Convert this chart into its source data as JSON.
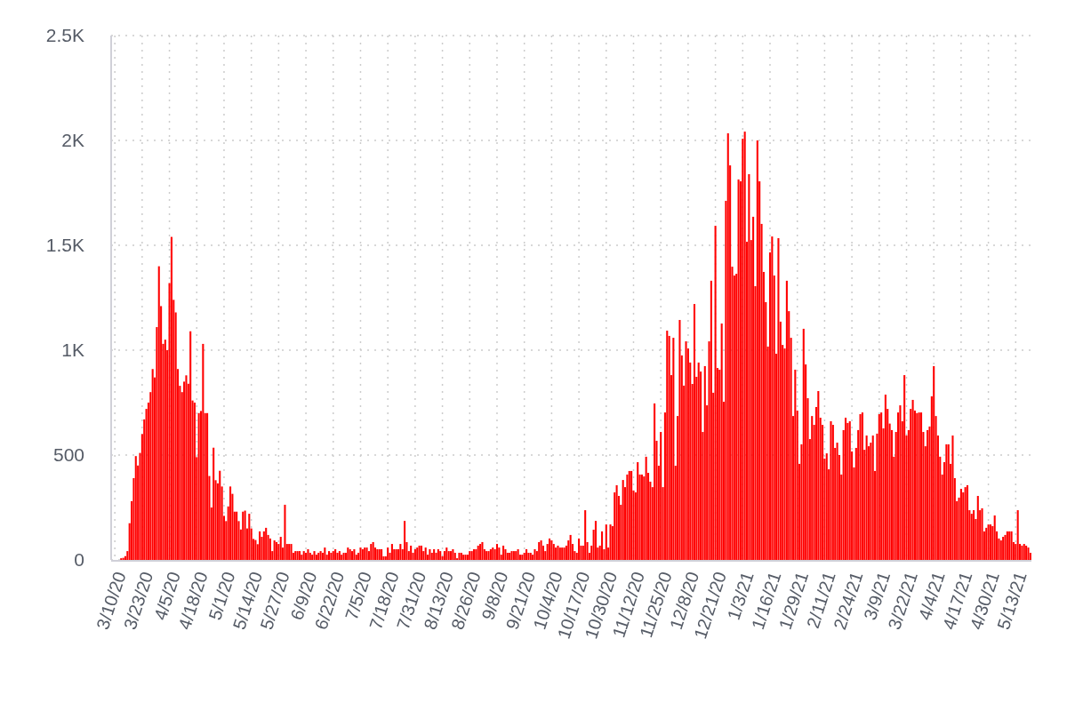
{
  "chart_data": {
    "type": "bar",
    "color": "#ff0000",
    "ylim": [
      0,
      2500
    ],
    "yticks": [
      0,
      500,
      {
        "value": 1000,
        "label": "1K"
      },
      {
        "value": 1500,
        "label": "1.5K"
      },
      {
        "value": 2000,
        "label": "2K"
      },
      {
        "value": 2500,
        "label": "2.5K"
      }
    ],
    "grid": true,
    "categories": [
      "3/10/20",
      null,
      null,
      null,
      null,
      null,
      null,
      null,
      null,
      null,
      null,
      null,
      null,
      "3/23/20",
      null,
      null,
      null,
      null,
      null,
      null,
      null,
      null,
      null,
      null,
      null,
      null,
      "4/5/20",
      null,
      null,
      null,
      null,
      null,
      null,
      null,
      null,
      null,
      null,
      null,
      null,
      "4/18/20",
      null,
      null,
      null,
      null,
      null,
      null,
      null,
      null,
      null,
      null,
      null,
      null,
      "5/1/20",
      null,
      null,
      null,
      null,
      null,
      null,
      null,
      null,
      null,
      null,
      null,
      null,
      "5/14/20",
      null,
      null,
      null,
      null,
      null,
      null,
      null,
      null,
      null,
      null,
      null,
      null,
      "5/27/20",
      null,
      null,
      null,
      null,
      null,
      null,
      null,
      null,
      null,
      null,
      null,
      null,
      "6/9/20",
      null,
      null,
      null,
      null,
      null,
      null,
      null,
      null,
      null,
      null,
      null,
      null,
      "6/22/20",
      null,
      null,
      null,
      null,
      null,
      null,
      null,
      null,
      null,
      null,
      null,
      null,
      "7/5/20",
      null,
      null,
      null,
      null,
      null,
      null,
      null,
      null,
      null,
      null,
      null,
      null,
      "7/18/20",
      null,
      null,
      null,
      null,
      null,
      null,
      null,
      null,
      null,
      null,
      null,
      null,
      "7/31/20",
      null,
      null,
      null,
      null,
      null,
      null,
      null,
      null,
      null,
      null,
      null,
      null,
      "8/13/20",
      null,
      null,
      null,
      null,
      null,
      null,
      null,
      null,
      null,
      null,
      null,
      null,
      "8/26/20",
      null,
      null,
      null,
      null,
      null,
      null,
      null,
      null,
      null,
      null,
      null,
      null,
      "9/8/20",
      null,
      null,
      null,
      null,
      null,
      null,
      null,
      null,
      null,
      null,
      null,
      null,
      "9/21/20",
      null,
      null,
      null,
      null,
      null,
      null,
      null,
      null,
      null,
      null,
      null,
      null,
      "10/4/20",
      null,
      null,
      null,
      null,
      null,
      null,
      null,
      null,
      null,
      null,
      null,
      null,
      "10/17/20",
      null,
      null,
      null,
      null,
      null,
      null,
      null,
      null,
      null,
      null,
      null,
      null,
      "10/30/20",
      null,
      null,
      null,
      null,
      null,
      null,
      null,
      null,
      null,
      null,
      null,
      null,
      "11/12/20",
      null,
      null,
      null,
      null,
      null,
      null,
      null,
      null,
      null,
      null,
      null,
      null,
      "11/25/20",
      null,
      null,
      null,
      null,
      null,
      null,
      null,
      null,
      null,
      null,
      null,
      null,
      "12/8/20",
      null,
      null,
      null,
      null,
      null,
      null,
      null,
      null,
      null,
      null,
      null,
      null,
      "12/21/20",
      null,
      null,
      null,
      null,
      null,
      null,
      null,
      null,
      null,
      null,
      null,
      null,
      "1/3/21",
      null,
      null,
      null,
      null,
      null,
      null,
      null,
      null,
      null,
      null,
      null,
      null,
      "1/16/21",
      null,
      null,
      null,
      null,
      null,
      null,
      null,
      null,
      null,
      null,
      null,
      null,
      "1/29/21",
      null,
      null,
      null,
      null,
      null,
      null,
      null,
      null,
      null,
      null,
      null,
      null,
      "2/11/21",
      null,
      null,
      null,
      null,
      null,
      null,
      null,
      null,
      null,
      null,
      null,
      null,
      "2/24/21",
      null,
      null,
      null,
      null,
      null,
      null,
      null,
      null,
      null,
      null,
      null,
      null,
      "3/9/21",
      null,
      null,
      null,
      null,
      null,
      null,
      null,
      null,
      null,
      null,
      null,
      null,
      "3/22/21",
      null,
      null,
      null,
      null,
      null,
      null,
      null,
      null,
      null,
      null,
      null,
      null,
      "4/4/21",
      null,
      null,
      null,
      null,
      null,
      null,
      null,
      null,
      null,
      null,
      null,
      null,
      "4/17/21",
      null,
      null,
      null,
      null,
      null,
      null,
      null,
      null,
      null,
      null,
      null,
      null,
      "4/30/21",
      null,
      null,
      null,
      null,
      null,
      null,
      null,
      null,
      null,
      null,
      null,
      null,
      "5/13/21",
      null,
      null,
      null,
      null,
      null,
      null,
      null
    ],
    "values": [
      0,
      0,
      0,
      8,
      10,
      18,
      42,
      175,
      280,
      390,
      495,
      450,
      510,
      600,
      670,
      720,
      750,
      800,
      910,
      870,
      1110,
      1400,
      1210,
      1030,
      1050,
      1000,
      1320,
      1540,
      1240,
      1180,
      910,
      830,
      800,
      850,
      880,
      840,
      1090,
      760,
      750,
      490,
      700,
      710,
      1030,
      700,
      700,
      400,
      250,
      535,
      380,
      365,
      425,
      350,
      210,
      185,
      255,
      350,
      315,
      230,
      230,
      185,
      145,
      230,
      235,
      150,
      220,
      150,
      100,
      95,
      75,
      136,
      110,
      136,
      153,
      119,
      102,
      42,
      93,
      85,
      76,
      110,
      59,
      263,
      76,
      76,
      76,
      34,
      42,
      42,
      42,
      25,
      42,
      34,
      51,
      34,
      25,
      42,
      25,
      34,
      42,
      34,
      59,
      25,
      42,
      34,
      42,
      51,
      34,
      42,
      25,
      34,
      34,
      59,
      51,
      42,
      51,
      25,
      34,
      59,
      51,
      59,
      59,
      42,
      76,
      85,
      59,
      51,
      51,
      51,
      17,
      17,
      59,
      34,
      76,
      51,
      51,
      51,
      76,
      51,
      186,
      85,
      42,
      68,
      34,
      51,
      59,
      68,
      68,
      42,
      59,
      25,
      51,
      34,
      51,
      34,
      51,
      42,
      17,
      42,
      59,
      42,
      42,
      51,
      34,
      8,
      34,
      34,
      25,
      25,
      25,
      42,
      42,
      51,
      51,
      68,
      76,
      85,
      51,
      42,
      42,
      51,
      59,
      51,
      76,
      59,
      25,
      68,
      51,
      34,
      34,
      42,
      42,
      42,
      51,
      25,
      25,
      34,
      51,
      34,
      34,
      25,
      51,
      42,
      85,
      93,
      68,
      42,
      76,
      102,
      93,
      76,
      59,
      68,
      59,
      59,
      59,
      68,
      93,
      119,
      76,
      42,
      34,
      102,
      68,
      68,
      237,
      85,
      34,
      68,
      144,
      186,
      59,
      68,
      136,
      51,
      169,
      59,
      169,
      161,
      322,
      356,
      305,
      263,
      381,
      347,
      407,
      424,
      424,
      331,
      322,
      466,
      407,
      407,
      398,
      492,
      415,
      373,
      347,
      746,
      568,
      449,
      610,
      347,
      703,
      1093,
      1068,
      881,
      1059,
      449,
      686,
      1144,
      975,
      831,
      1042,
      1008,
      941,
      839,
      1220,
      873,
      941,
      898,
      610,
      924,
      737,
      1042,
      1331,
      797,
      1593,
      915,
      907,
      1127,
      754,
      1712,
      2034,
      1881,
      1398,
      1356,
      1364,
      1814,
      1805,
      2008,
      2042,
      1517,
      1839,
      1525,
      1636,
      1305,
      2000,
      1805,
      1602,
      1373,
      1229,
      1017,
      1466,
      1542,
      1356,
      983,
      1534,
      1136,
      1025,
      1008,
      1331,
      1186,
      1059,
      686,
      907,
      712,
      458,
      551,
      1102,
      932,
      771,
      576,
      686,
      644,
      729,
      805,
      678,
      644,
      483,
      508,
      432,
      661,
      644,
      534,
      559,
      500,
      407,
      619,
      678,
      653,
      661,
      517,
      441,
      534,
      619,
      695,
      703,
      525,
      593,
      542,
      559,
      593,
      424,
      602,
      695,
      703,
      627,
      788,
      720,
      650,
      619,
      492,
      610,
      703,
      737,
      661,
      881,
      593,
      619,
      720,
      763,
      712,
      700,
      703,
      703,
      610,
      542,
      619,
      636,
      780,
      924,
      686,
      593,
      492,
      407,
      466,
      551,
      551,
      458,
      593,
      390,
      280,
      297,
      339,
      322,
      347,
      356,
      237,
      220,
      237,
      195,
      305,
      237,
      246,
      136,
      153,
      169,
      169,
      161,
      212,
      136,
      102,
      93,
      110,
      119,
      136,
      136,
      136,
      85,
      76,
      237,
      76,
      68,
      76,
      68,
      59,
      34
    ]
  }
}
